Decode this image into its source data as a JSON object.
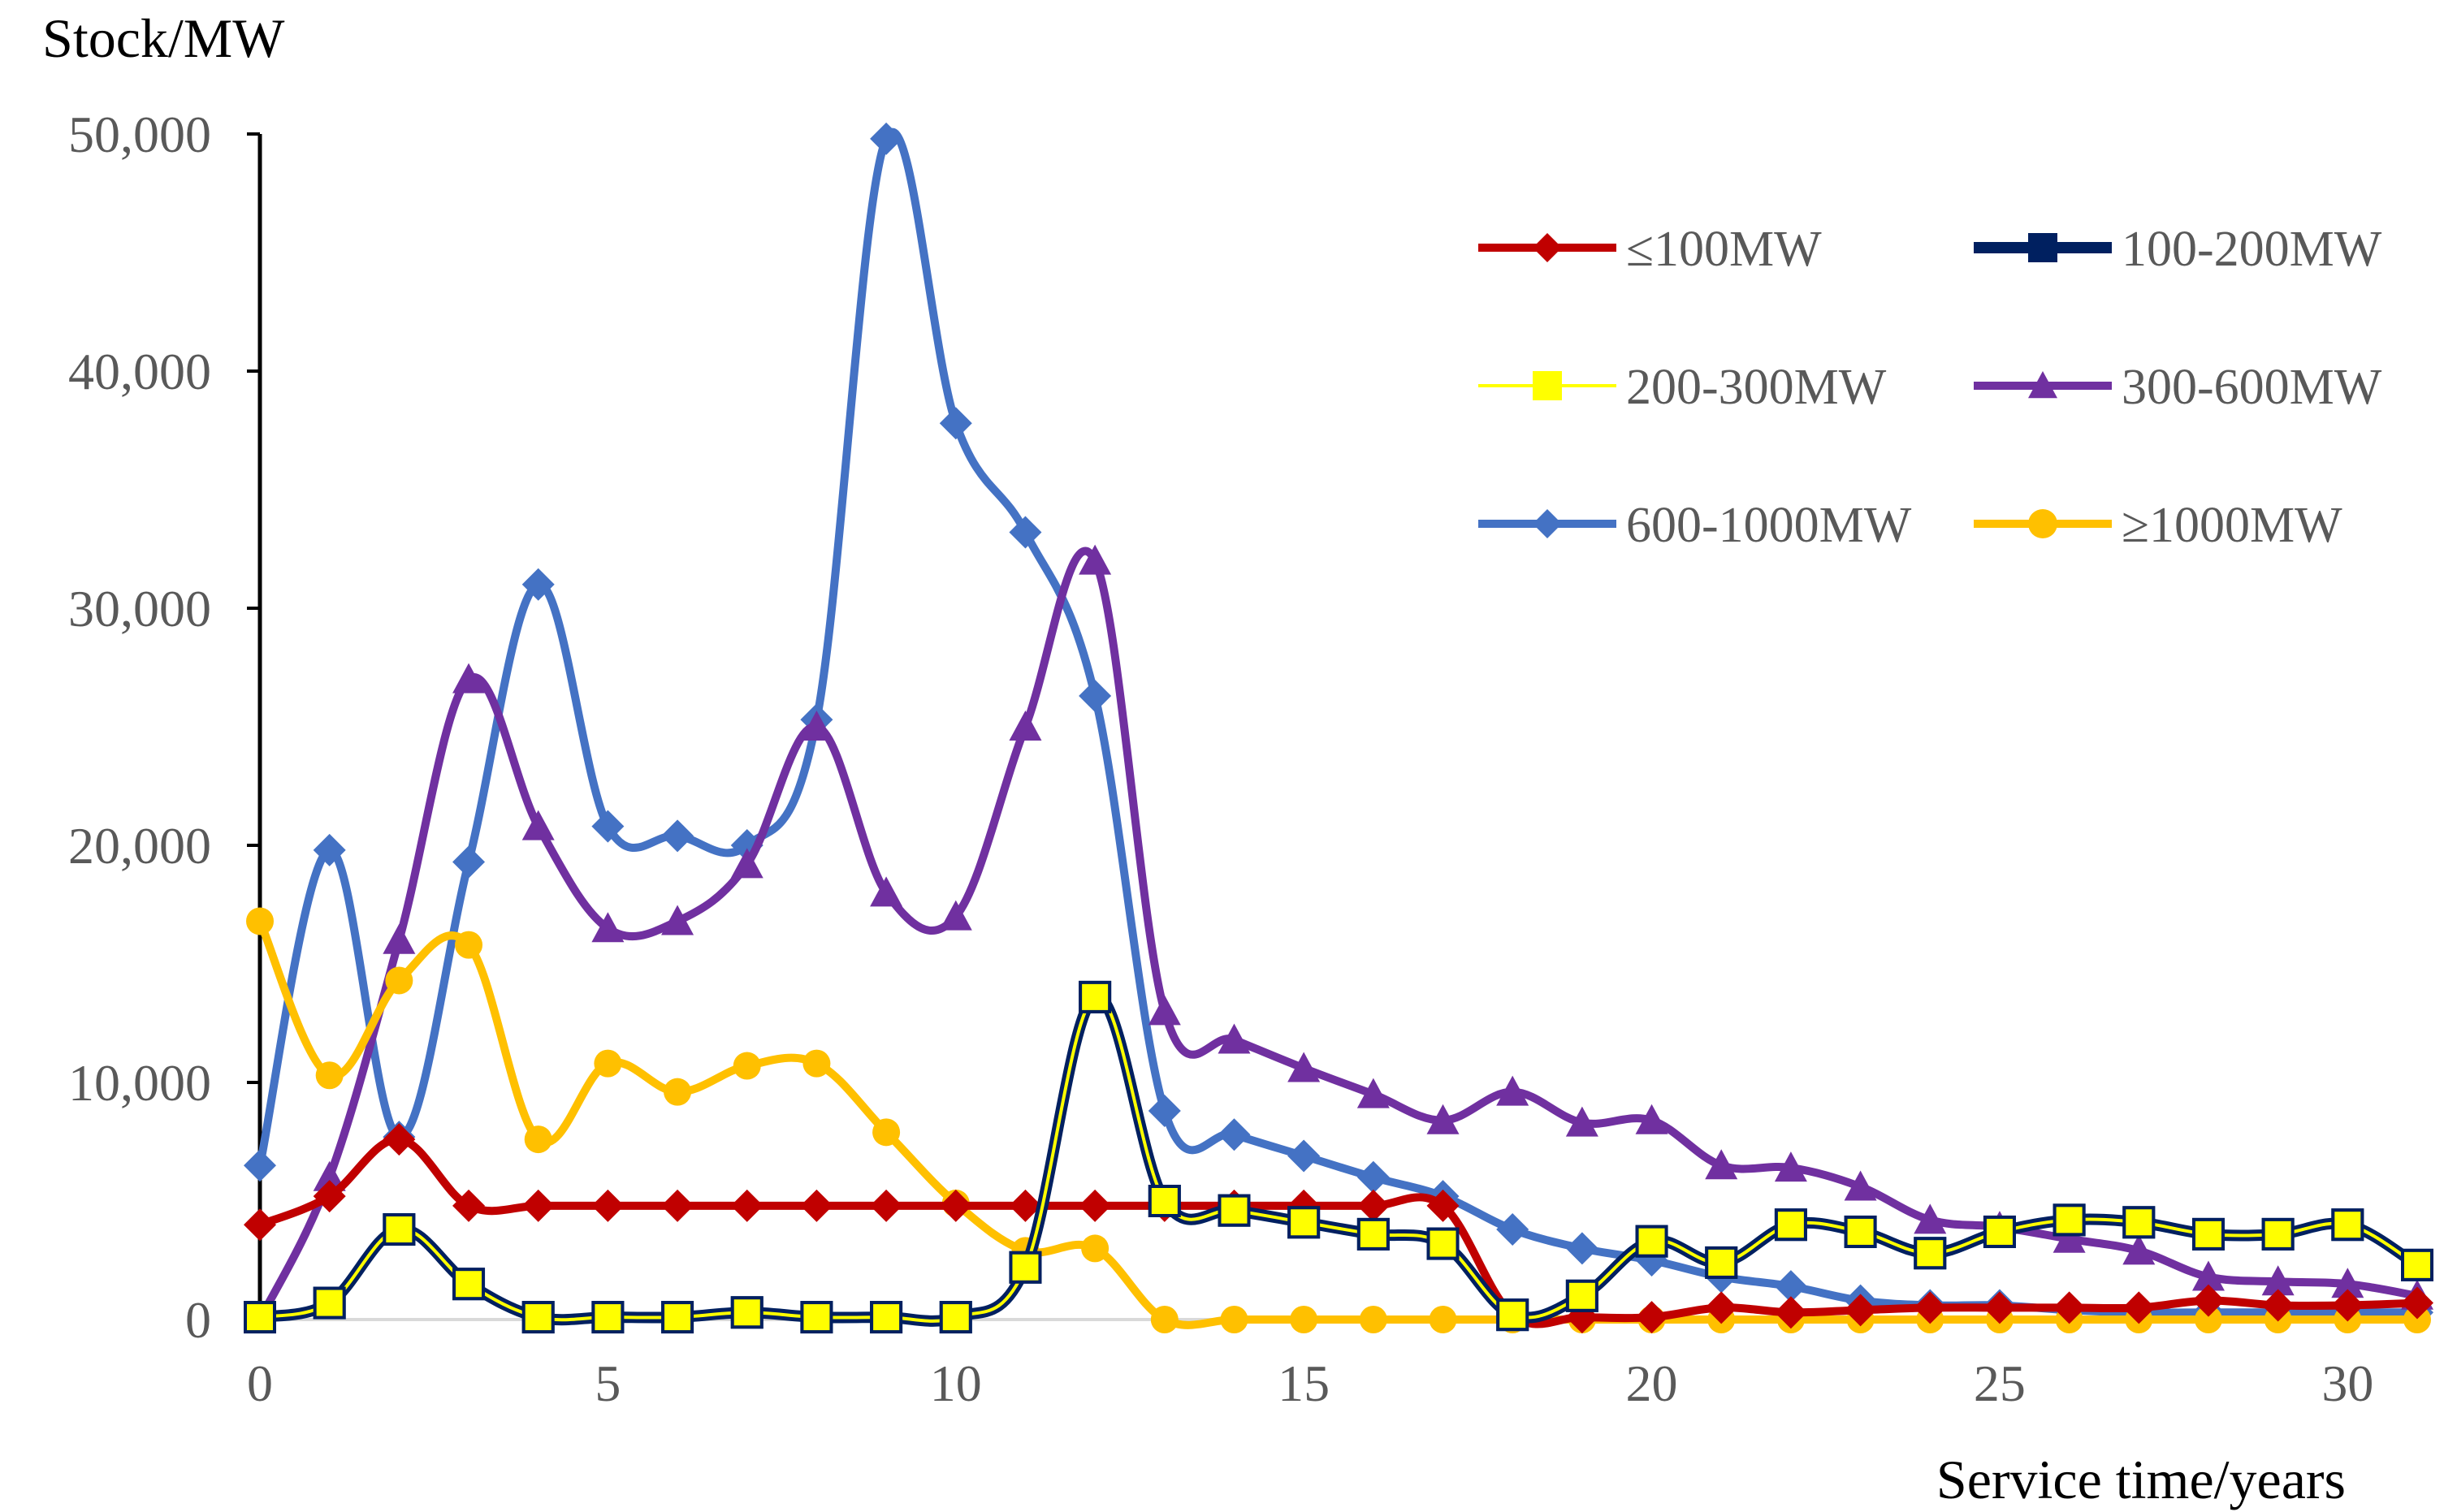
{
  "chart_data": {
    "type": "line",
    "title": "",
    "ylabel": "Stock/MW",
    "xlabel": "Service time/years",
    "xlim": [
      0,
      31
    ],
    "ylim": [
      0,
      50000
    ],
    "x_ticks": [
      0,
      5,
      10,
      15,
      20,
      25,
      30
    ],
    "x_tick_labels": [
      "0",
      "5",
      "10",
      "15",
      "20",
      "25",
      "30"
    ],
    "y_ticks": [
      0,
      10000,
      20000,
      30000,
      40000,
      50000
    ],
    "y_tick_labels": [
      "0",
      "10,000",
      "20,000",
      "30,000",
      "40,000",
      "50,000"
    ],
    "grid": false,
    "legend_position": "top-right",
    "x": [
      0,
      1,
      2,
      3,
      4,
      5,
      6,
      7,
      8,
      9,
      10,
      11,
      12,
      13,
      14,
      15,
      16,
      17,
      18,
      19,
      20,
      21,
      22,
      23,
      24,
      25,
      26,
      27,
      28,
      29,
      30,
      31
    ],
    "series": [
      {
        "name": "≤100MW",
        "color": "#C00000",
        "marker": "diamond",
        "stroke": "#C00000",
        "values": [
          4000,
          5200,
          7600,
          4800,
          4800,
          4800,
          4800,
          4800,
          4800,
          4800,
          4800,
          4800,
          4800,
          4800,
          4800,
          4800,
          4800,
          4800,
          200,
          100,
          100,
          500,
          300,
          400,
          500,
          500,
          500,
          500,
          800,
          600,
          600,
          700
        ]
      },
      {
        "name": "100-200MW",
        "color": "#002060",
        "marker": "square",
        "stroke": "#002060",
        "values": [
          100,
          700,
          3800,
          1500,
          100,
          100,
          100,
          300,
          100,
          100,
          100,
          2200,
          13600,
          5000,
          4600,
          4100,
          3600,
          3200,
          200,
          1000,
          3300,
          2400,
          4000,
          3700,
          2800,
          3700,
          4200,
          4100,
          3600,
          3600,
          4000,
          2300
        ]
      },
      {
        "name": "200-300MW",
        "color": "#FFFF00",
        "marker": "square",
        "stroke": "#FFFF00",
        "values": [
          100,
          700,
          3800,
          1500,
          100,
          100,
          100,
          300,
          100,
          100,
          100,
          2200,
          13600,
          5000,
          4600,
          4100,
          3600,
          3200,
          200,
          1000,
          3300,
          2400,
          4000,
          3700,
          2800,
          3700,
          4200,
          4100,
          3600,
          3600,
          4000,
          2300
        ]
      },
      {
        "name": "300-600MW",
        "color": "#7030A0",
        "marker": "triangle",
        "stroke": "#7030A0",
        "values": [
          0,
          6000,
          16000,
          27000,
          20800,
          16500,
          16800,
          19200,
          25000,
          18000,
          17000,
          25000,
          32000,
          13000,
          11800,
          10600,
          9500,
          8400,
          9600,
          8300,
          8400,
          6500,
          6400,
          5600,
          4200,
          3900,
          3400,
          2900,
          1800,
          1600,
          1500,
          1000
        ]
      },
      {
        "name": "600-1000MW",
        "color": "#4472C4",
        "marker": "diamond",
        "stroke": "#4472C4",
        "values": [
          6500,
          19800,
          7700,
          19300,
          31000,
          20800,
          20400,
          20000,
          25300,
          49800,
          37800,
          33200,
          26300,
          8800,
          7800,
          6900,
          6000,
          5200,
          3800,
          3000,
          2500,
          1800,
          1400,
          800,
          600,
          600,
          400,
          300,
          300,
          300,
          300,
          300
        ]
      },
      {
        "name": "≥1000MW",
        "color": "#FFC000",
        "marker": "circle",
        "stroke": "#FFC000",
        "values": [
          16800,
          10300,
          14300,
          15800,
          7600,
          10800,
          9600,
          10700,
          10800,
          7900,
          4900,
          2900,
          3000,
          0,
          0,
          0,
          0,
          0,
          0,
          0,
          0,
          0,
          0,
          0,
          0,
          0,
          0,
          0,
          0,
          0,
          0,
          0
        ]
      }
    ]
  }
}
